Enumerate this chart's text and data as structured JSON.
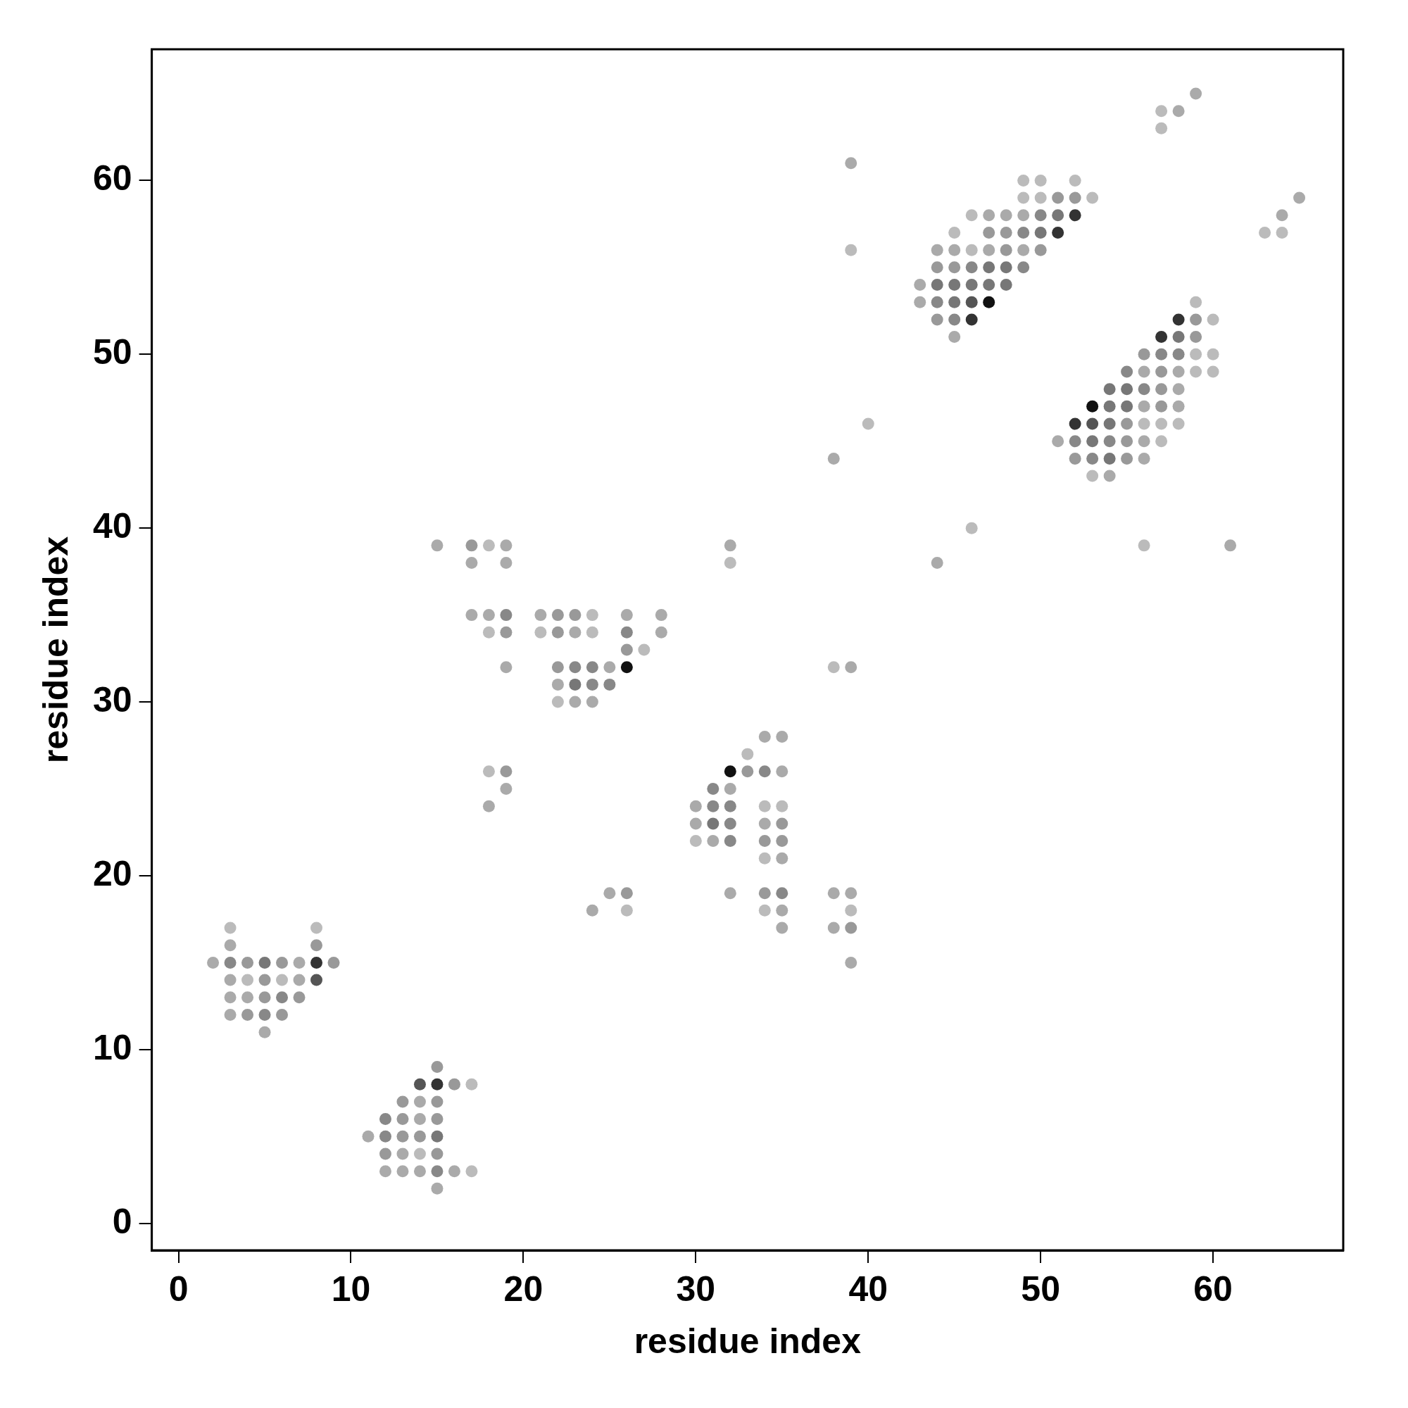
{
  "chart_data": {
    "type": "scatter",
    "xlabel": "residue index",
    "ylabel": "residue index",
    "xlim": [
      -1.55,
      67.55
    ],
    "ylim": [
      -1.55,
      67.55
    ],
    "xticks": [
      0,
      10,
      20,
      30,
      40,
      50,
      60
    ],
    "yticks": [
      0,
      10,
      20,
      30,
      40,
      50,
      60
    ],
    "marker": "circle",
    "grid": false,
    "series": [
      {
        "color": "#bbbbbb",
        "x": [
          3,
          8,
          4,
          6,
          17,
          14,
          17,
          18,
          24,
          18,
          21,
          24,
          27,
          22,
          33,
          18,
          34,
          35,
          30,
          34,
          26,
          34,
          39,
          49,
          50,
          52,
          49,
          50,
          53,
          46,
          45,
          46,
          59,
          60,
          59,
          60,
          59,
          60,
          56,
          57,
          58,
          57,
          53,
          57,
          57,
          63,
          64,
          39,
          40,
          46,
          56,
          32,
          38
        ],
        "values": [
          17,
          17,
          14,
          14,
          8,
          4,
          3,
          39,
          35,
          34,
          34,
          34,
          33,
          30,
          27,
          26,
          24,
          24,
          22,
          21,
          18,
          18,
          18,
          60,
          60,
          60,
          59,
          59,
          59,
          58,
          57,
          56,
          53,
          52,
          50,
          50,
          49,
          49,
          46,
          46,
          46,
          45,
          43,
          64,
          63,
          57,
          57,
          56,
          46,
          40,
          39,
          38,
          32
        ]
      },
      {
        "color": "#aaaaaa",
        "x": [
          3,
          2,
          7,
          3,
          7,
          3,
          4,
          3,
          5,
          14,
          14,
          11,
          13,
          12,
          13,
          14,
          16,
          15,
          15,
          19,
          17,
          19,
          17,
          18,
          21,
          26,
          28,
          23,
          28,
          19,
          25,
          22,
          23,
          24,
          34,
          35,
          35,
          19,
          32,
          18,
          30,
          30,
          34,
          31,
          35,
          25,
          32,
          38,
          39,
          24,
          35,
          35,
          38,
          39,
          47,
          48,
          49,
          44,
          45,
          47,
          49,
          43,
          43,
          45,
          56,
          58,
          58,
          56,
          58,
          51,
          56,
          56,
          54,
          59,
          58,
          39,
          65,
          64,
          38,
          61,
          32,
          44,
          39
        ],
        "values": [
          16,
          15,
          15,
          14,
          14,
          13,
          13,
          12,
          11,
          7,
          6,
          5,
          4,
          3,
          3,
          3,
          3,
          2,
          39,
          39,
          38,
          38,
          35,
          35,
          35,
          35,
          35,
          34,
          34,
          32,
          32,
          31,
          30,
          30,
          28,
          28,
          26,
          25,
          25,
          24,
          24,
          23,
          23,
          22,
          21,
          19,
          19,
          19,
          19,
          18,
          18,
          17,
          17,
          15,
          58,
          58,
          58,
          56,
          56,
          56,
          56,
          54,
          53,
          51,
          49,
          49,
          48,
          47,
          47,
          45,
          45,
          44,
          43,
          65,
          64,
          61,
          59,
          58,
          44,
          39,
          39,
          38,
          32
        ]
      },
      {
        "color": "#999999",
        "x": [
          8,
          4,
          6,
          9,
          5,
          5,
          7,
          4,
          6,
          15,
          16,
          13,
          15,
          13,
          15,
          13,
          14,
          12,
          15,
          17,
          22,
          23,
          19,
          22,
          26,
          22,
          19,
          33,
          35,
          34,
          35,
          26,
          34,
          39,
          51,
          52,
          47,
          48,
          48,
          50,
          44,
          45,
          44,
          59,
          59,
          56,
          57,
          57,
          57,
          55,
          55,
          52,
          55
        ],
        "values": [
          16,
          15,
          15,
          15,
          14,
          13,
          13,
          12,
          12,
          9,
          8,
          7,
          7,
          6,
          6,
          5,
          5,
          4,
          4,
          39,
          35,
          35,
          34,
          34,
          33,
          32,
          26,
          26,
          23,
          22,
          22,
          19,
          19,
          17,
          59,
          59,
          57,
          57,
          56,
          56,
          55,
          55,
          52,
          52,
          51,
          50,
          49,
          48,
          47,
          46,
          45,
          44,
          44
        ]
      },
      {
        "color": "#888888",
        "x": [
          3,
          6,
          5,
          12,
          12,
          15,
          19,
          26,
          23,
          24,
          24,
          25,
          34,
          31,
          31,
          32,
          32,
          32,
          35,
          50,
          49,
          46,
          49,
          44,
          45,
          57,
          58,
          55,
          56,
          52,
          54,
          53
        ],
        "values": [
          15,
          13,
          12,
          6,
          5,
          3,
          35,
          34,
          32,
          32,
          31,
          31,
          26,
          25,
          24,
          24,
          23,
          22,
          19,
          58,
          57,
          55,
          55,
          53,
          52,
          50,
          50,
          49,
          48,
          45,
          45,
          44
        ]
      },
      {
        "color": "#777777",
        "x": [
          5,
          15,
          23,
          31,
          51,
          50,
          47,
          48,
          44,
          45,
          46,
          47,
          48,
          45,
          58,
          54,
          55,
          54,
          55,
          54,
          53,
          54
        ],
        "values": [
          15,
          5,
          31,
          23,
          58,
          57,
          55,
          55,
          54,
          54,
          54,
          54,
          54,
          53,
          51,
          48,
          48,
          47,
          47,
          46,
          45,
          44
        ]
      },
      {
        "color": "#555555",
        "x": [
          8,
          14,
          46,
          53
        ],
        "values": [
          14,
          8,
          53,
          46
        ]
      },
      {
        "color": "#333333",
        "x": [
          8,
          15,
          52,
          51,
          46,
          58,
          57,
          52
        ],
        "values": [
          15,
          8,
          58,
          57,
          52,
          52,
          51,
          46
        ]
      },
      {
        "color": "#111111",
        "x": [
          26,
          32,
          47,
          53
        ],
        "values": [
          32,
          26,
          53,
          47
        ]
      }
    ]
  }
}
